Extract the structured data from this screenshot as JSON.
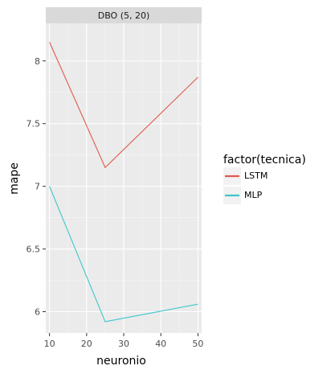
{
  "chart_data": {
    "type": "line",
    "facet_label": "DBO (5, 20)",
    "xlabel": "neuronio",
    "ylabel": "mape",
    "xlim": [
      9,
      51
    ],
    "ylim": [
      5.83,
      8.3
    ],
    "x_ticks": [
      10,
      20,
      30,
      40,
      50
    ],
    "y_ticks": [
      6,
      6.5,
      7,
      7.5,
      8
    ],
    "y_tick_labels": [
      "6",
      "6.5",
      "7",
      "7.5",
      "8"
    ],
    "grid": true,
    "legend": {
      "title": "factor(tecnica)",
      "placement": "right"
    },
    "series": [
      {
        "name": "LSTM",
        "color": "#e05a4f",
        "x": [
          10,
          25,
          50
        ],
        "y": [
          8.15,
          7.15,
          7.87
        ]
      },
      {
        "name": "MLP",
        "color": "#3fc7cc",
        "x": [
          10,
          25,
          50
        ],
        "y": [
          7.0,
          5.92,
          6.06
        ]
      }
    ]
  }
}
